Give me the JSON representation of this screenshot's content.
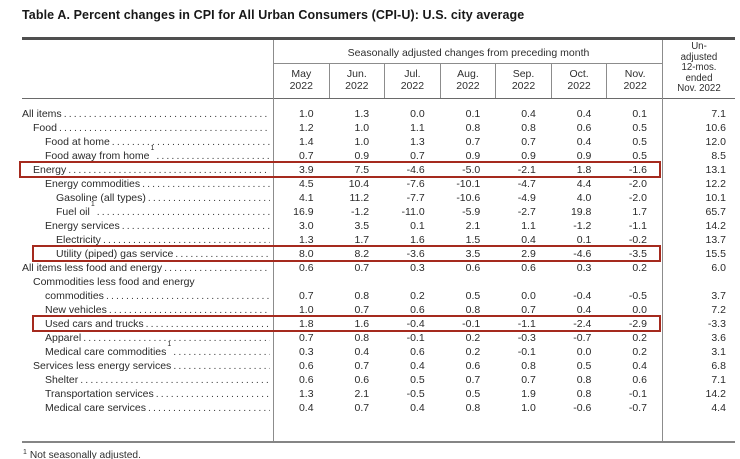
{
  "title": "Table A. Percent changes in CPI for All Urban Consumers (CPI-U): U.S. city average",
  "accent_color": "#a52a1e",
  "table": {
    "group_header": "Seasonally adjusted changes from preceding month",
    "unadjusted_header": "Un-\nadjusted\n12-mos.\nended\nNov. 2022",
    "months": [
      "May\n2022",
      "Jun.\n2022",
      "Jul.\n2022",
      "Aug.\n2022",
      "Sep.\n2022",
      "Oct.\n2022",
      "Nov.\n2022"
    ],
    "footnote_symbol": "1",
    "footnote_text": "Not seasonally adjusted.",
    "rows": [
      {
        "label": "All items",
        "indent": 0,
        "sup": false,
        "highlight": false,
        "values": [
          "1.0",
          "1.3",
          "0.0",
          "0.1",
          "0.4",
          "0.4",
          "0.1"
        ],
        "yoy": "7.1"
      },
      {
        "label": "Food",
        "indent": 1,
        "sup": false,
        "highlight": false,
        "values": [
          "1.2",
          "1.0",
          "1.1",
          "0.8",
          "0.8",
          "0.6",
          "0.5"
        ],
        "yoy": "10.6"
      },
      {
        "label": "Food at home",
        "indent": 2,
        "sup": false,
        "highlight": false,
        "values": [
          "1.4",
          "1.0",
          "1.3",
          "0.7",
          "0.7",
          "0.4",
          "0.5"
        ],
        "yoy": "12.0"
      },
      {
        "label": "Food away from home",
        "indent": 2,
        "sup": true,
        "highlight": false,
        "values": [
          "0.7",
          "0.9",
          "0.7",
          "0.9",
          "0.9",
          "0.9",
          "0.5"
        ],
        "yoy": "8.5"
      },
      {
        "label": "Energy",
        "indent": 1,
        "sup": false,
        "highlight": true,
        "values": [
          "3.9",
          "7.5",
          "-4.6",
          "-5.0",
          "-2.1",
          "1.8",
          "-1.6"
        ],
        "yoy": "13.1"
      },
      {
        "label": "Energy commodities",
        "indent": 2,
        "sup": false,
        "highlight": false,
        "values": [
          "4.5",
          "10.4",
          "-7.6",
          "-10.1",
          "-4.7",
          "4.4",
          "-2.0"
        ],
        "yoy": "12.2"
      },
      {
        "label": "Gasoline (all types)",
        "indent": 3,
        "sup": false,
        "highlight": false,
        "values": [
          "4.1",
          "11.2",
          "-7.7",
          "-10.6",
          "-4.9",
          "4.0",
          "-2.0"
        ],
        "yoy": "10.1"
      },
      {
        "label": "Fuel oil",
        "indent": 3,
        "sup": true,
        "highlight": false,
        "values": [
          "16.9",
          "-1.2",
          "-11.0",
          "-5.9",
          "-2.7",
          "19.8",
          "1.7"
        ],
        "yoy": "65.7"
      },
      {
        "label": "Energy services",
        "indent": 2,
        "sup": false,
        "highlight": false,
        "values": [
          "3.0",
          "3.5",
          "0.1",
          "2.1",
          "1.1",
          "-1.2",
          "-1.1"
        ],
        "yoy": "14.2"
      },
      {
        "label": "Electricity",
        "indent": 3,
        "sup": false,
        "highlight": false,
        "values": [
          "1.3",
          "1.7",
          "1.6",
          "1.5",
          "0.4",
          "0.1",
          "-0.2"
        ],
        "yoy": "13.7"
      },
      {
        "label": "Utility (piped) gas service",
        "indent": 3,
        "sup": false,
        "highlight": true,
        "values": [
          "8.0",
          "8.2",
          "-3.6",
          "3.5",
          "2.9",
          "-4.6",
          "-3.5"
        ],
        "yoy": "15.5"
      },
      {
        "label": "All items less food and energy",
        "indent": 0,
        "sup": false,
        "highlight": false,
        "values": [
          "0.6",
          "0.7",
          "0.3",
          "0.6",
          "0.6",
          "0.3",
          "0.2"
        ],
        "yoy": "6.0"
      },
      {
        "label": "Commodities less food and energy commodities",
        "label_lines": [
          "Commodities less food and energy",
          "commodities"
        ],
        "indent": 1,
        "sup": false,
        "highlight": false,
        "values": [
          "0.7",
          "0.8",
          "0.2",
          "0.5",
          "0.0",
          "-0.4",
          "-0.5"
        ],
        "yoy": "3.7"
      },
      {
        "label": "New vehicles",
        "indent": 2,
        "sup": false,
        "highlight": false,
        "values": [
          "1.0",
          "0.7",
          "0.6",
          "0.8",
          "0.7",
          "0.4",
          "0.0"
        ],
        "yoy": "7.2"
      },
      {
        "label": "Used cars and trucks",
        "indent": 2,
        "sup": false,
        "highlight": true,
        "values": [
          "1.8",
          "1.6",
          "-0.4",
          "-0.1",
          "-1.1",
          "-2.4",
          "-2.9"
        ],
        "yoy": "-3.3"
      },
      {
        "label": "Apparel",
        "indent": 2,
        "sup": false,
        "highlight": false,
        "values": [
          "0.7",
          "0.8",
          "-0.1",
          "0.2",
          "-0.3",
          "-0.7",
          "0.2"
        ],
        "yoy": "3.6"
      },
      {
        "label": "Medical care commodities",
        "indent": 2,
        "sup": true,
        "highlight": false,
        "values": [
          "0.3",
          "0.4",
          "0.6",
          "0.2",
          "-0.1",
          "0.0",
          "0.2"
        ],
        "yoy": "3.1"
      },
      {
        "label": "Services less energy services",
        "indent": 1,
        "sup": false,
        "highlight": false,
        "values": [
          "0.6",
          "0.7",
          "0.4",
          "0.6",
          "0.8",
          "0.5",
          "0.4"
        ],
        "yoy": "6.8"
      },
      {
        "label": "Shelter",
        "indent": 2,
        "sup": false,
        "highlight": false,
        "values": [
          "0.6",
          "0.6",
          "0.5",
          "0.7",
          "0.7",
          "0.8",
          "0.6"
        ],
        "yoy": "7.1"
      },
      {
        "label": "Transportation services",
        "indent": 2,
        "sup": false,
        "highlight": false,
        "values": [
          "1.3",
          "2.1",
          "-0.5",
          "0.5",
          "1.9",
          "0.8",
          "-0.1"
        ],
        "yoy": "14.2"
      },
      {
        "label": "Medical care services",
        "indent": 2,
        "sup": false,
        "highlight": false,
        "values": [
          "0.4",
          "0.7",
          "0.4",
          "0.8",
          "1.0",
          "-0.6",
          "-0.7"
        ],
        "yoy": "4.4"
      }
    ]
  }
}
